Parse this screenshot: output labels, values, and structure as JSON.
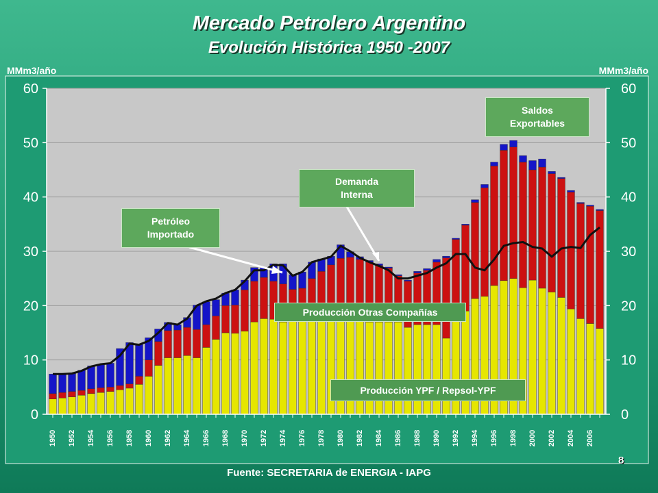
{
  "title": "Mercado Petrolero Argentino",
  "subtitle": "Evolución Histórica 1950 -2007",
  "unit_left": "MMm3/año",
  "unit_right": "MMm3/año",
  "source": "Fuente: SECRETARIA de ENERGIA - IAPG",
  "page_number": "8",
  "annotations": {
    "saldos": "Saldos\nExportables",
    "demanda": "Demanda\nInterna",
    "importado": "Petróleo\nImportado",
    "otras": "Producción Otras Compañías",
    "ypf": "Producción YPF / Repsol-YPF"
  },
  "colors": {
    "ypf": "#e6e600",
    "otras": "#cc1111",
    "importado": "#1515c8",
    "demanda_line": "#111111",
    "plot_bg": "#c8c8c8"
  },
  "chart_data": {
    "type": "bar",
    "stacked": true,
    "title": "Mercado Petrolero Argentino",
    "subtitle": "Evolución Histórica 1950 -2007",
    "ylabel_left": "MMm3/año",
    "ylabel_right": "MMm3/año",
    "ylim": [
      0,
      60
    ],
    "yticks": [
      0,
      10,
      20,
      30,
      40,
      50,
      60
    ],
    "grid": true,
    "x_tick_labels": [
      "1950",
      "1952",
      "1954",
      "1956",
      "1958",
      "1960",
      "1962",
      "1964",
      "1966",
      "1968",
      "1970",
      "1972",
      "1974",
      "1976",
      "1978",
      "1980",
      "1982",
      "1984",
      "1986",
      "1988",
      "1990",
      "1992",
      "1994",
      "1996",
      "1998",
      "2000",
      "2002",
      "2004",
      "2006"
    ],
    "x": [
      1950,
      1951,
      1952,
      1953,
      1954,
      1955,
      1956,
      1957,
      1958,
      1959,
      1960,
      1961,
      1962,
      1963,
      1964,
      1965,
      1966,
      1967,
      1968,
      1969,
      1970,
      1971,
      1972,
      1973,
      1974,
      1975,
      1976,
      1977,
      1978,
      1979,
      1980,
      1981,
      1982,
      1983,
      1984,
      1985,
      1986,
      1987,
      1988,
      1989,
      1990,
      1991,
      1992,
      1993,
      1994,
      1995,
      1996,
      1997,
      1998,
      1999,
      2000,
      2001,
      2002,
      2003,
      2004,
      2005,
      2006,
      2007
    ],
    "series": [
      {
        "key": "ypf",
        "values": [
          2.8,
          3.0,
          3.2,
          3.5,
          3.8,
          4.0,
          4.2,
          4.5,
          4.8,
          5.5,
          7.0,
          9.0,
          10.4,
          10.4,
          10.8,
          10.4,
          12.3,
          13.8,
          15.0,
          14.9,
          15.3,
          17.0,
          17.6,
          17.5,
          17.0,
          17.5,
          17.5,
          17.5,
          17.5,
          17.5,
          17.5,
          17.5,
          17.5,
          17.0,
          17.0,
          17.0,
          17.0,
          16.0,
          16.5,
          16.5,
          16.5,
          14.0,
          18.0,
          19.0,
          21.3,
          21.7,
          23.7,
          24.6,
          25.0,
          23.3,
          24.7,
          23.2,
          22.5,
          21.5,
          19.4,
          17.6,
          16.7,
          15.8
        ]
      },
      {
        "key": "otras",
        "values": [
          1.0,
          1.0,
          1.0,
          0.9,
          0.9,
          0.9,
          0.8,
          0.8,
          0.8,
          1.5,
          3.0,
          4.4,
          5.0,
          5.1,
          5.2,
          5.2,
          4.2,
          4.3,
          5.0,
          5.2,
          7.6,
          7.5,
          7.6,
          7.0,
          7.0,
          5.5,
          5.7,
          7.5,
          8.8,
          10.0,
          11.2,
          11.4,
          11.0,
          11.0,
          10.4,
          9.9,
          8.5,
          8.5,
          9.5,
          10.0,
          11.5,
          14.8,
          14.2,
          15.8,
          17.7,
          20.0,
          22.0,
          24.0,
          24.2,
          23.1,
          20.3,
          22.3,
          21.8,
          21.9,
          21.5,
          21.2,
          21.6,
          21.7
        ]
      },
      {
        "key": "importado",
        "values": [
          3.6,
          3.4,
          3.3,
          3.7,
          4.2,
          4.3,
          4.4,
          6.8,
          7.6,
          5.9,
          4.1,
          2.3,
          1.5,
          1.0,
          1.8,
          4.5,
          4.2,
          3.0,
          2.3,
          2.8,
          1.8,
          2.5,
          1.8,
          3.2,
          3.7,
          2.7,
          3.0,
          3.0,
          2.3,
          1.6,
          2.5,
          1.0,
          0.5,
          0.3,
          0.3,
          0.2,
          0.2,
          0.2,
          0.3,
          0.3,
          0.5,
          0.3,
          0.2,
          0.2,
          0.5,
          0.6,
          0.7,
          1.1,
          1.2,
          1.2,
          1.7,
          1.5,
          0.4,
          0.2,
          0.3,
          0.2,
          0.2,
          0.2
        ]
      },
      {
        "key": "demanda",
        "type": "line",
        "values": [
          7.4,
          7.4,
          7.5,
          8.0,
          8.8,
          9.2,
          9.4,
          10.8,
          13.0,
          12.8,
          13.5,
          15.0,
          16.8,
          16.5,
          17.6,
          20.0,
          20.8,
          21.3,
          22.3,
          22.9,
          24.5,
          26.5,
          26.5,
          27.5,
          27.4,
          25.5,
          26.2,
          28.0,
          28.5,
          29.0,
          31.0,
          30.0,
          28.8,
          28.0,
          27.3,
          26.5,
          25.0,
          25.0,
          25.5,
          26.0,
          27.0,
          27.8,
          29.5,
          29.5,
          27.0,
          26.5,
          28.5,
          31.0,
          31.5,
          31.7,
          30.8,
          30.5,
          29.0,
          30.5,
          30.8,
          30.6,
          33.0,
          34.4
        ]
      }
    ]
  }
}
